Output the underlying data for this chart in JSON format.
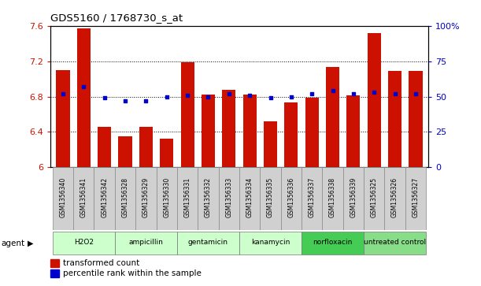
{
  "title": "GDS5160 / 1768730_s_at",
  "samples": [
    "GSM1356340",
    "GSM1356341",
    "GSM1356342",
    "GSM1356328",
    "GSM1356329",
    "GSM1356330",
    "GSM1356331",
    "GSM1356332",
    "GSM1356333",
    "GSM1356334",
    "GSM1356335",
    "GSM1356336",
    "GSM1356337",
    "GSM1356338",
    "GSM1356339",
    "GSM1356325",
    "GSM1356326",
    "GSM1356327"
  ],
  "bar_values": [
    7.1,
    7.57,
    6.46,
    6.35,
    6.46,
    6.32,
    7.19,
    6.82,
    6.88,
    6.82,
    6.52,
    6.73,
    6.79,
    7.13,
    6.81,
    7.52,
    7.09,
    7.09
  ],
  "percentile_pct": [
    52,
    57,
    49,
    47,
    47,
    50,
    51,
    50,
    52,
    51,
    49,
    50,
    52,
    54,
    52,
    53,
    52,
    52
  ],
  "agents": [
    {
      "label": "H2O2",
      "start": 0,
      "end": 2,
      "color": "#ccffcc"
    },
    {
      "label": "ampicillin",
      "start": 3,
      "end": 5,
      "color": "#ccffcc"
    },
    {
      "label": "gentamicin",
      "start": 6,
      "end": 8,
      "color": "#ccffcc"
    },
    {
      "label": "kanamycin",
      "start": 9,
      "end": 11,
      "color": "#ccffcc"
    },
    {
      "label": "norfloxacin",
      "start": 12,
      "end": 14,
      "color": "#44cc55"
    },
    {
      "label": "untreated control",
      "start": 15,
      "end": 17,
      "color": "#88dd88"
    }
  ],
  "bar_color": "#cc1100",
  "percentile_color": "#0000cc",
  "ylim_left": [
    6.0,
    7.6
  ],
  "ylim_right": [
    0,
    100
  ],
  "yticks_left": [
    6.0,
    6.4,
    6.8,
    7.2,
    7.6
  ],
  "ytick_labels_left": [
    "6",
    "6.4",
    "6.8",
    "7.2",
    "7.6"
  ],
  "yticks_right": [
    0,
    25,
    50,
    75,
    100
  ],
  "ytick_labels_right": [
    "0",
    "25",
    "50",
    "75",
    "100%"
  ],
  "legend_bar": "transformed count",
  "legend_pct": "percentile rank within the sample",
  "agent_label": "agent"
}
